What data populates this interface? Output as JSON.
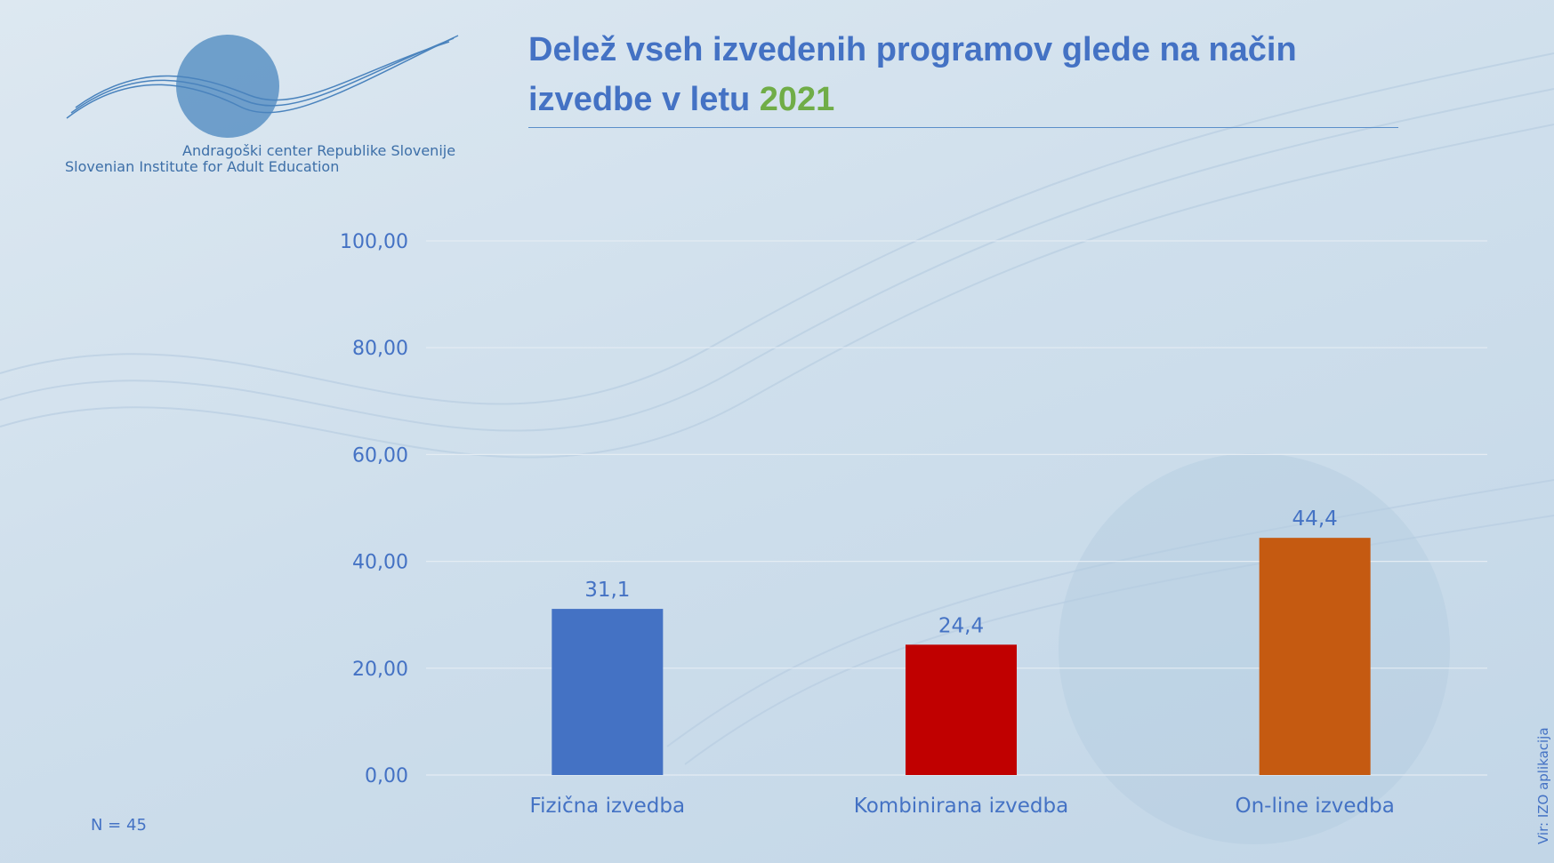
{
  "logo": {
    "line1": "Andragoški center Republike Slovenije",
    "line2": "Slovenian Institute for Adult Education"
  },
  "title": {
    "text": "Delež vseh izvedenih programov glede na način izvedbe v letu",
    "year": "2021"
  },
  "footnote": "N = 45",
  "source": "Vir: IZO aplikacija",
  "colors": {
    "title": "#4472c4",
    "year": "#70ad47"
  },
  "chart_data": {
    "type": "bar",
    "title": "Delež vseh izvedenih programov glede na način izvedbe v letu 2021",
    "xlabel": "",
    "ylabel": "",
    "ylim": [
      0,
      100
    ],
    "yticks": [
      "0,00",
      "20,00",
      "40,00",
      "60,00",
      "80,00",
      "100,00"
    ],
    "grid": true,
    "categories": [
      "Fizična izvedba",
      "Kombinirana izvedba",
      "On-line izvedba"
    ],
    "values": [
      31.1,
      24.4,
      44.4
    ],
    "data_labels": [
      "31,1",
      "24,4",
      "44,4"
    ],
    "bar_colors": [
      "#4472c4",
      "#c00000",
      "#c55a11"
    ]
  }
}
